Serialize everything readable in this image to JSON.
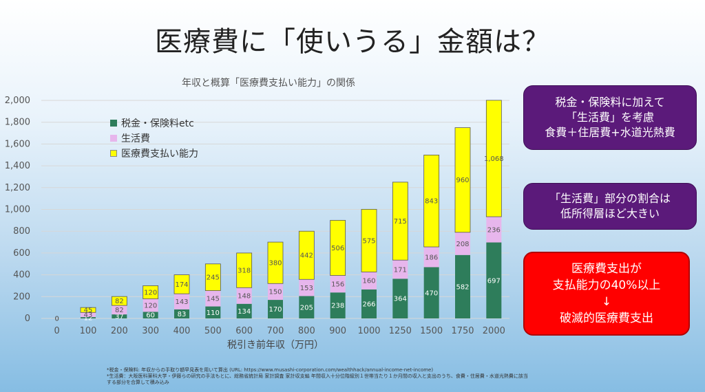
{
  "slide": {
    "title": "医療費に「使いうる」金額は？"
  },
  "chart_data": {
    "type": "bar",
    "stacked": true,
    "title": "年収と概算「医療費支払い能力」の関係",
    "xlabel": "税引き前年収（万円）",
    "ylabel": "",
    "ylim": [
      0,
      2000
    ],
    "yticks": [
      0,
      200,
      400,
      600,
      800,
      1000,
      1200,
      1400,
      1600,
      1800,
      2000
    ],
    "ytick_labels": [
      "0",
      "200",
      "400",
      "600",
      "800",
      "1,000",
      "1,200",
      "1,400",
      "1,600",
      "1,800",
      "2,000"
    ],
    "categories": [
      "0",
      "100",
      "200",
      "300",
      "400",
      "500",
      "600",
      "700",
      "800",
      "900",
      "1000",
      "1250",
      "1500",
      "1750",
      "2000"
    ],
    "grid": true,
    "legend_position": "top-left",
    "series": [
      {
        "name": "税金・保険料etc",
        "color": "#2e7d5b",
        "label_color": "#ffffff",
        "values": [
          0,
          12,
          37,
          60,
          83,
          110,
          134,
          170,
          205,
          238,
          266,
          364,
          470,
          582,
          697
        ],
        "labels": [
          "0",
          "12",
          "37",
          "60",
          "83",
          "110",
          "134",
          "170",
          "205",
          "238",
          "266",
          "364",
          "470",
          "582",
          "697"
        ]
      },
      {
        "name": "生活費",
        "color": "#e7b6ec",
        "label_color": "#555555",
        "values": [
          0,
          43,
          82,
          120,
          143,
          145,
          148,
          150,
          153,
          156,
          160,
          171,
          186,
          208,
          236
        ],
        "labels": [
          "0",
          "43",
          "82",
          "120",
          "143",
          "145",
          "148",
          "150",
          "153",
          "156",
          "160",
          "171",
          "186",
          "208",
          "236"
        ]
      },
      {
        "name": "医療費支払い能力",
        "color": "#ffff00",
        "label_color": "#555555",
        "values": [
          0,
          45,
          82,
          120,
          174,
          245,
          318,
          380,
          442,
          506,
          575,
          715,
          843,
          960,
          1068
        ],
        "labels": [
          "0",
          "45",
          "82",
          "120",
          "174",
          "245",
          "318",
          "380",
          "442",
          "506",
          "575",
          "715",
          "843",
          "960",
          "1,068"
        ]
      }
    ]
  },
  "callouts": {
    "box1": {
      "line1": "税金・保険料に加えて",
      "line2": "「生活費」を考慮",
      "line3": "食費＋住居費+水道光熱費",
      "color": "#5b1a7a"
    },
    "box2": {
      "line1": "「生活費」部分の割合は",
      "line2": "低所得層ほど大きい",
      "color": "#5b1a7a"
    },
    "box3": {
      "line1": "医療費支出が",
      "line2": "支払能力の40%以上",
      "arrow": "↓",
      "line3": "破滅的医療費支出",
      "color": "#ff0000"
    }
  },
  "footnotes": {
    "line1": "*税金・保険料: 年収からの手取り額早見表を用いて算出 (URL: https://www.musashi-corporation.com/wealthhack/annual-income-net-income)",
    "line2": "*生活費：大阪医科薬科大学・伊藤らの研究の手法もとに、総務省統計局 家計調査 家計収支編 年間収入十分位階級別１世帯当たり１か月間の収入と支出のうち、食費・住居費・水道光熱費に該当",
    "line3": "する部分を合算して積み込み"
  }
}
